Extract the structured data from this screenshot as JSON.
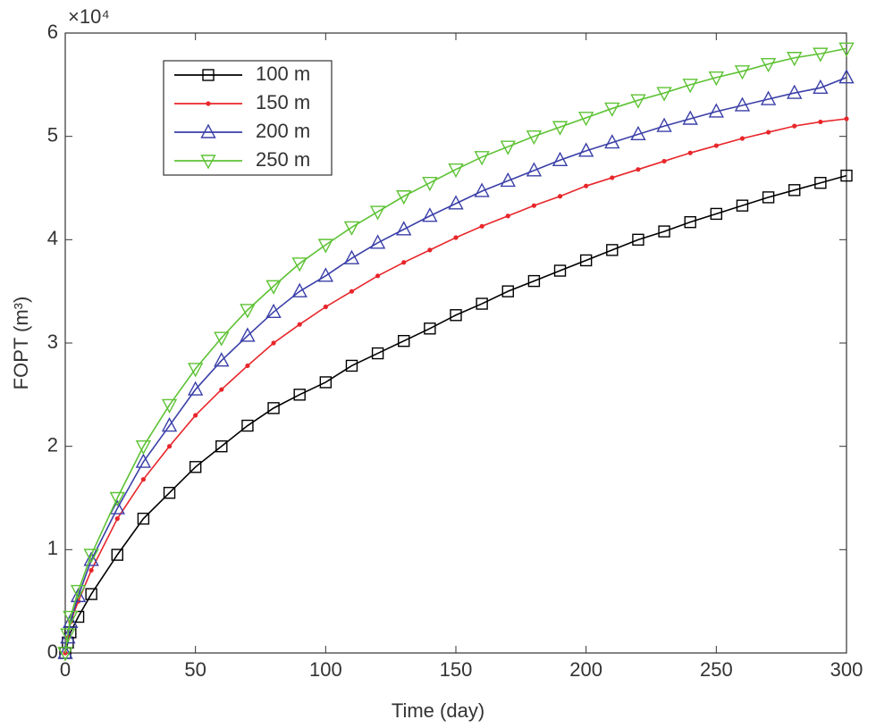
{
  "chart_data": {
    "type": "line",
    "xlabel": "Time (day)",
    "ylabel": "FOPT (m³)",
    "y_multiplier": "×10⁴",
    "x": [
      0,
      1,
      2,
      5,
      10,
      20,
      30,
      40,
      50,
      60,
      70,
      80,
      90,
      100,
      110,
      120,
      130,
      140,
      150,
      160,
      170,
      180,
      190,
      200,
      210,
      220,
      230,
      240,
      250,
      260,
      270,
      280,
      290,
      300
    ],
    "series": [
      {
        "name": "100 m",
        "color": "#000000",
        "marker": "square",
        "values": [
          0,
          0.1,
          0.2,
          0.35,
          0.57,
          0.95,
          1.3,
          1.55,
          1.8,
          2.0,
          2.2,
          2.37,
          2.5,
          2.62,
          2.78,
          2.9,
          3.02,
          3.14,
          3.27,
          3.38,
          3.5,
          3.6,
          3.7,
          3.8,
          3.9,
          4.0,
          4.08,
          4.17,
          4.25,
          4.33,
          4.41,
          4.48,
          4.55,
          4.62
        ]
      },
      {
        "name": "150 m",
        "color": "#e8262a",
        "marker": "dot",
        "values": [
          0,
          0.15,
          0.3,
          0.5,
          0.8,
          1.3,
          1.68,
          2.0,
          2.3,
          2.55,
          2.78,
          3.0,
          3.18,
          3.35,
          3.5,
          3.65,
          3.78,
          3.9,
          4.02,
          4.13,
          4.23,
          4.33,
          4.42,
          4.52,
          4.6,
          4.68,
          4.76,
          4.84,
          4.91,
          4.98,
          5.04,
          5.1,
          5.14,
          5.17
        ]
      },
      {
        "name": "200 m",
        "color": "#3a3fa8",
        "marker": "triangle-up",
        "values": [
          0,
          0.15,
          0.3,
          0.55,
          0.9,
          1.4,
          1.85,
          2.2,
          2.55,
          2.83,
          3.07,
          3.3,
          3.5,
          3.65,
          3.82,
          3.97,
          4.1,
          4.23,
          4.35,
          4.47,
          4.57,
          4.67,
          4.77,
          4.86,
          4.94,
          5.02,
          5.1,
          5.17,
          5.24,
          5.3,
          5.36,
          5.42,
          5.47,
          5.57
        ]
      },
      {
        "name": "250 m",
        "color": "#5dc234",
        "marker": "triangle-down",
        "values": [
          0,
          0.18,
          0.35,
          0.6,
          0.95,
          1.5,
          2.0,
          2.4,
          2.75,
          3.05,
          3.32,
          3.55,
          3.77,
          3.95,
          4.12,
          4.27,
          4.42,
          4.55,
          4.68,
          4.8,
          4.9,
          5.0,
          5.09,
          5.18,
          5.27,
          5.35,
          5.42,
          5.5,
          5.57,
          5.63,
          5.7,
          5.76,
          5.8,
          5.85
        ]
      }
    ],
    "xlim": [
      0,
      300
    ],
    "xticks": [
      0,
      50,
      100,
      150,
      200,
      250,
      300
    ],
    "ylim": [
      0,
      6
    ],
    "yticks": [
      0,
      1,
      2,
      3,
      4,
      5,
      6
    ],
    "grid": false,
    "legend": "upper left"
  }
}
